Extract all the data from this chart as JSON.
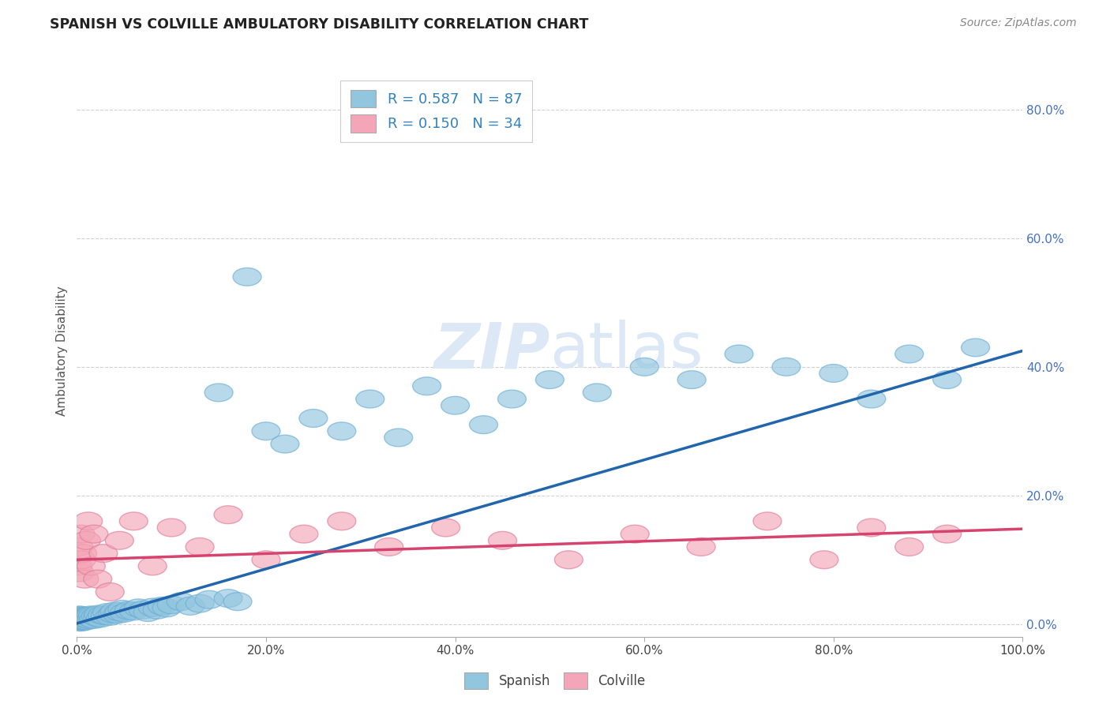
{
  "title": "SPANISH VS COLVILLE AMBULATORY DISABILITY CORRELATION CHART",
  "source": "Source: ZipAtlas.com",
  "xlabel": "",
  "ylabel": "Ambulatory Disability",
  "xlim": [
    0,
    1.0
  ],
  "ylim": [
    -0.02,
    0.87
  ],
  "xticks": [
    0.0,
    0.2,
    0.4,
    0.6,
    0.8,
    1.0
  ],
  "xtick_labels": [
    "0.0%",
    "20.0%",
    "40.0%",
    "60.0%",
    "80.0%",
    "100.0%"
  ],
  "yticks": [
    0.0,
    0.2,
    0.4,
    0.6,
    0.8
  ],
  "ytick_labels": [
    "0.0%",
    "20.0%",
    "40.0%",
    "60.0%",
    "80.0%"
  ],
  "legend_r1": "R = 0.587   N = 87",
  "legend_r2": "R = 0.150   N = 34",
  "blue_color": "#92c5de",
  "blue_edge": "#6baed6",
  "pink_color": "#f4a6b8",
  "pink_edge": "#e07a99",
  "trend_blue": "#2166ac",
  "trend_pink": "#d6436e",
  "watermark_color": "#dce8f5",
  "spanish_x": [
    0.001,
    0.001,
    0.002,
    0.002,
    0.002,
    0.003,
    0.003,
    0.003,
    0.003,
    0.004,
    0.004,
    0.004,
    0.005,
    0.005,
    0.005,
    0.006,
    0.006,
    0.006,
    0.007,
    0.007,
    0.008,
    0.008,
    0.009,
    0.009,
    0.01,
    0.01,
    0.011,
    0.012,
    0.013,
    0.014,
    0.015,
    0.016,
    0.017,
    0.018,
    0.02,
    0.022,
    0.023,
    0.025,
    0.027,
    0.03,
    0.032,
    0.035,
    0.038,
    0.04,
    0.043,
    0.045,
    0.048,
    0.05,
    0.055,
    0.06,
    0.065,
    0.07,
    0.075,
    0.08,
    0.085,
    0.09,
    0.095,
    0.1,
    0.11,
    0.12,
    0.13,
    0.14,
    0.15,
    0.16,
    0.17,
    0.18,
    0.2,
    0.22,
    0.25,
    0.28,
    0.31,
    0.34,
    0.37,
    0.4,
    0.43,
    0.46,
    0.5,
    0.55,
    0.6,
    0.65,
    0.7,
    0.75,
    0.8,
    0.84,
    0.88,
    0.92,
    0.95
  ],
  "spanish_y": [
    0.006,
    0.008,
    0.005,
    0.009,
    0.012,
    0.004,
    0.007,
    0.01,
    0.014,
    0.003,
    0.006,
    0.011,
    0.005,
    0.008,
    0.013,
    0.004,
    0.007,
    0.01,
    0.005,
    0.009,
    0.006,
    0.012,
    0.007,
    0.011,
    0.005,
    0.009,
    0.008,
    0.012,
    0.007,
    0.01,
    0.014,
    0.009,
    0.013,
    0.007,
    0.012,
    0.01,
    0.015,
    0.009,
    0.014,
    0.013,
    0.018,
    0.012,
    0.016,
    0.02,
    0.015,
    0.019,
    0.023,
    0.017,
    0.021,
    0.02,
    0.025,
    0.022,
    0.018,
    0.026,
    0.022,
    0.028,
    0.025,
    0.03,
    0.035,
    0.028,
    0.032,
    0.038,
    0.36,
    0.04,
    0.035,
    0.54,
    0.3,
    0.28,
    0.32,
    0.3,
    0.35,
    0.29,
    0.37,
    0.34,
    0.31,
    0.35,
    0.38,
    0.36,
    0.4,
    0.38,
    0.42,
    0.4,
    0.39,
    0.35,
    0.42,
    0.38,
    0.43
  ],
  "colville_x": [
    0.001,
    0.002,
    0.003,
    0.004,
    0.005,
    0.006,
    0.008,
    0.01,
    0.012,
    0.015,
    0.018,
    0.022,
    0.028,
    0.035,
    0.045,
    0.06,
    0.08,
    0.1,
    0.13,
    0.16,
    0.2,
    0.24,
    0.28,
    0.33,
    0.39,
    0.45,
    0.52,
    0.59,
    0.66,
    0.73,
    0.79,
    0.84,
    0.88,
    0.92
  ],
  "colville_y": [
    0.09,
    0.12,
    0.08,
    0.14,
    0.1,
    0.11,
    0.07,
    0.13,
    0.16,
    0.09,
    0.14,
    0.07,
    0.11,
    0.05,
    0.13,
    0.16,
    0.09,
    0.15,
    0.12,
    0.17,
    0.1,
    0.14,
    0.16,
    0.12,
    0.15,
    0.13,
    0.1,
    0.14,
    0.12,
    0.16,
    0.1,
    0.15,
    0.12,
    0.14
  ],
  "blue_trend_x0": 0.0,
  "blue_trend_y0": 0.001,
  "blue_trend_x1": 1.0,
  "blue_trend_y1": 0.425,
  "pink_trend_x0": 0.0,
  "pink_trend_y0": 0.1,
  "pink_trend_x1": 1.0,
  "pink_trend_y1": 0.148
}
